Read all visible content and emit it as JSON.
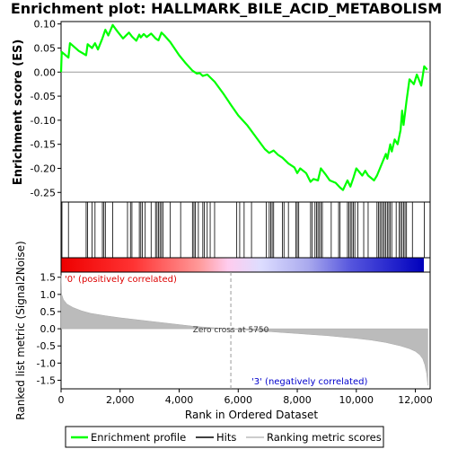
{
  "chart_data": {
    "type": "line",
    "title": "Enrichment plot: HALLMARK_BILE_ACID_METABOLISM",
    "es_panel": {
      "ylabel": "Enrichment score (ES)",
      "ylim": [
        -0.27,
        0.105
      ],
      "yticks": [
        0.1,
        0.05,
        0.0,
        -0.05,
        -0.1,
        -0.15,
        -0.2,
        -0.25
      ],
      "ytick_labels": [
        "0.10",
        "0.05",
        "0.00",
        "-0.05",
        "-0.10",
        "-0.15",
        "-0.20",
        "-0.25"
      ],
      "grid": false,
      "series": [
        {
          "name": "Enrichment profile",
          "color": "#00ff00",
          "x": [
            0,
            20,
            250,
            300,
            600,
            850,
            900,
            1050,
            1150,
            1250,
            1400,
            1500,
            1600,
            1750,
            1900,
            2100,
            2300,
            2400,
            2550,
            2650,
            2700,
            2800,
            2900,
            3050,
            3200,
            3300,
            3400,
            3500,
            3700,
            4000,
            4200,
            4450,
            4600,
            4700,
            4800,
            4950,
            5200,
            5500,
            5750,
            6000,
            6300,
            6600,
            6900,
            7050,
            7200,
            7350,
            7500,
            7700,
            7900,
            8000,
            8100,
            8300,
            8450,
            8550,
            8700,
            8800,
            8950,
            9100,
            9300,
            9450,
            9550,
            9700,
            9800,
            9900,
            10000,
            10200,
            10300,
            10400,
            10600,
            10700,
            10800,
            10900,
            11000,
            11050,
            11150,
            11200,
            11300,
            11400,
            11500,
            11550,
            11600,
            11700,
            11800,
            11950,
            12050,
            12200,
            12300,
            12400
          ],
          "y": [
            0.0,
            0.042,
            0.03,
            0.06,
            0.044,
            0.035,
            0.058,
            0.05,
            0.06,
            0.047,
            0.07,
            0.088,
            0.076,
            0.098,
            0.085,
            0.07,
            0.082,
            0.074,
            0.065,
            0.078,
            0.072,
            0.079,
            0.073,
            0.08,
            0.07,
            0.066,
            0.082,
            0.076,
            0.062,
            0.035,
            0.02,
            0.003,
            -0.003,
            -0.002,
            -0.008,
            -0.005,
            -0.02,
            -0.045,
            -0.068,
            -0.09,
            -0.11,
            -0.135,
            -0.16,
            -0.168,
            -0.163,
            -0.172,
            -0.178,
            -0.19,
            -0.198,
            -0.21,
            -0.2,
            -0.21,
            -0.228,
            -0.222,
            -0.225,
            -0.2,
            -0.212,
            -0.225,
            -0.23,
            -0.24,
            -0.245,
            -0.225,
            -0.238,
            -0.22,
            -0.2,
            -0.215,
            -0.205,
            -0.215,
            -0.225,
            -0.215,
            -0.2,
            -0.185,
            -0.17,
            -0.18,
            -0.15,
            -0.165,
            -0.14,
            -0.15,
            -0.12,
            -0.08,
            -0.11,
            -0.06,
            -0.015,
            -0.025,
            -0.005,
            -0.028,
            0.012,
            0.005
          ]
        }
      ]
    },
    "hits_panel": {
      "name": "Hits",
      "color": "#000000",
      "hit_ranks": [
        30,
        250,
        850,
        900,
        1050,
        1150,
        1400,
        1450,
        1500,
        1750,
        2250,
        2350,
        2400,
        2650,
        2700,
        2750,
        2850,
        3050,
        3200,
        3250,
        3300,
        3350,
        3400,
        3450,
        3700,
        4050,
        4450,
        4500,
        4550,
        4650,
        4800,
        4850,
        4950,
        5050,
        5200,
        5950,
        6050,
        6200,
        6450,
        6950,
        7050,
        7100,
        7150,
        7200,
        7500,
        7550,
        7700,
        7950,
        8000,
        8050,
        8450,
        8500,
        8600,
        8650,
        8700,
        8750,
        8800,
        8850,
        9150,
        9400,
        9450,
        9700,
        9750,
        9800,
        9850,
        9900,
        9950,
        10050,
        10250,
        10400,
        10700,
        10750,
        10800,
        10850,
        10900,
        10950,
        11000,
        11050,
        11100,
        11150,
        11200,
        11350,
        11450,
        11500,
        11550,
        11600,
        11650,
        11700,
        11900,
        12300
      ]
    },
    "rank_panel": {
      "name": "Ranking metric scores",
      "ylabel": "Ranked list metric (Signal2Noise)",
      "xlabel": "Rank in Ordered Dataset",
      "ylim": [
        -1.75,
        1.65
      ],
      "yticks": [
        1.5,
        1.0,
        0.5,
        0.0,
        -0.5,
        -1.0,
        -1.5
      ],
      "ytick_labels": [
        "1.5",
        "1.0",
        "0.5",
        "0.0",
        "-0.5",
        "-1.0",
        "-1.5"
      ],
      "xlim": [
        0,
        12500
      ],
      "xticks": [
        0,
        2000,
        4000,
        6000,
        8000,
        10000,
        12000
      ],
      "xtick_labels": [
        "0",
        "2,000",
        "4,000",
        "6,000",
        "8,000",
        "10,000",
        "12,000"
      ],
      "color": "#bbbbbb",
      "metric_x": [
        0,
        20,
        80,
        200,
        400,
        700,
        1000,
        1500,
        2000,
        2500,
        3000,
        3500,
        4000,
        4500,
        5000,
        5500,
        5750,
        6000,
        6500,
        7000,
        7500,
        8000,
        8500,
        9000,
        9500,
        10000,
        10500,
        11000,
        11500,
        11800,
        12000,
        12150,
        12250,
        12320,
        12380,
        12420
      ],
      "metric_y": [
        1.55,
        1.0,
        0.85,
        0.72,
        0.62,
        0.52,
        0.45,
        0.38,
        0.32,
        0.27,
        0.22,
        0.17,
        0.12,
        0.07,
        0.04,
        0.01,
        0.0,
        -0.02,
        -0.05,
        -0.08,
        -0.11,
        -0.14,
        -0.17,
        -0.2,
        -0.24,
        -0.28,
        -0.33,
        -0.4,
        -0.5,
        -0.58,
        -0.66,
        -0.76,
        -0.88,
        -1.05,
        -1.3,
        -1.65
      ],
      "zero_cross_rank": 5750,
      "zero_cross_label": "Zero cross at 5750",
      "pos_label": "'0' (positively correlated)",
      "neg_label": "'3' (negatively correlated)",
      "pos_color": "#dd0000",
      "neg_color": "#0000cc"
    },
    "legend": {
      "placement": "bottom",
      "items": [
        {
          "label": "Enrichment profile",
          "color": "#00ff00"
        },
        {
          "label": "Hits",
          "color": "#000000"
        },
        {
          "label": "Ranking metric scores",
          "color": "#bbbbbb"
        }
      ]
    }
  }
}
